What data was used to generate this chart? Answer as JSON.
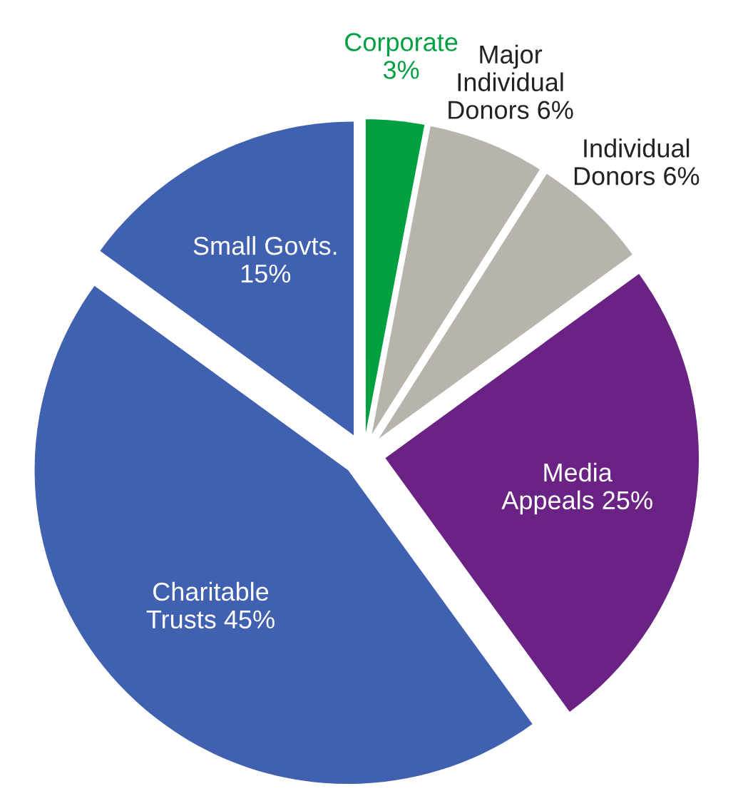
{
  "chart_data": {
    "type": "pie",
    "categories": [
      "Corporate",
      "Major\nIndividual\nDonors",
      "Individual\nDonors",
      "Media\nAppeals",
      "Charitable\nTrusts",
      "Small Govts."
    ],
    "values": [
      3,
      6,
      6,
      25,
      45,
      15
    ],
    "value_labels": [
      "3%",
      "6%",
      "6%",
      "25%",
      "45%",
      "15%"
    ],
    "colors": [
      "#00a040",
      "#b8b4ac",
      "#b8b4ac",
      "#6a2384",
      "#4060b0",
      "#4060b0"
    ],
    "legend": false
  }
}
